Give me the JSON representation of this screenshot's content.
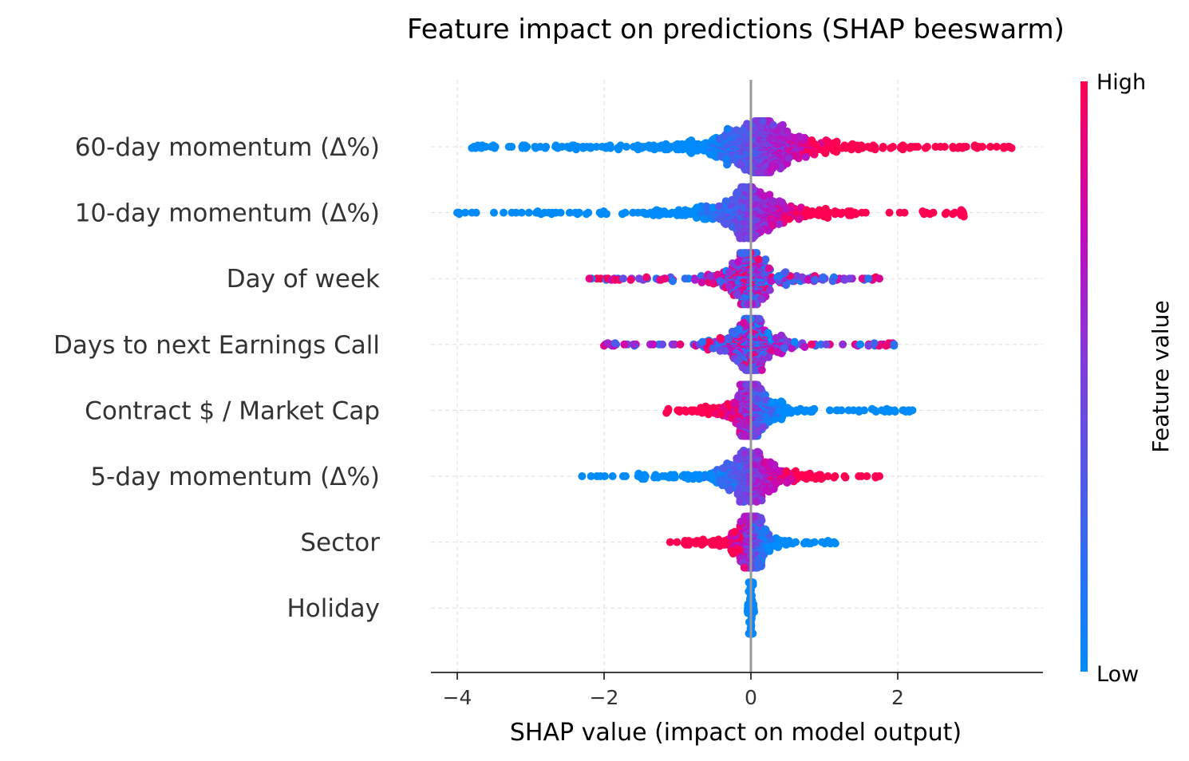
{
  "chart_data": {
    "type": "scatter",
    "subtype": "shap-beeswarm",
    "title": "Feature impact on predictions (SHAP beeswarm)",
    "xlabel": "SHAP value (impact on model output)",
    "ylabel": "",
    "xlim": [
      -4.35,
      3.95
    ],
    "xticks": [
      -4,
      -2,
      0,
      2
    ],
    "xtick_labels": [
      "−4",
      "−2",
      "0",
      "2"
    ],
    "grid": true,
    "colorbar": {
      "label": "Feature value",
      "high_label": "High",
      "low_label": "Low",
      "low_color": "#008bfb",
      "high_color": "#ff0052"
    },
    "features": [
      {
        "name": "60-day momentum (Δ%)",
        "min": -3.8,
        "max": 3.55,
        "spread": 1.0,
        "n": 900,
        "trend": 1,
        "peak": 0.15,
        "extremes": [
          -3.8,
          -3.75,
          -3.72,
          3.52,
          3.55,
          3.05,
          2.88,
          2.82
        ]
      },
      {
        "name": "10-day momentum (Δ%)",
        "min": -4.0,
        "max": 2.9,
        "spread": 0.9,
        "n": 650,
        "trend": 1,
        "peak": 0.0,
        "extremes": [
          -4.0,
          -3.8,
          -3.5,
          -3.2,
          2.9,
          2.75,
          2.65
        ]
      },
      {
        "name": "Day of week",
        "min": -2.2,
        "max": 1.75,
        "spread": 0.5,
        "n": 500,
        "trend": 0,
        "peak": 0.0,
        "extremes": [
          -2.2,
          -1.95,
          -1.9,
          -1.85,
          1.6,
          1.75
        ]
      },
      {
        "name": "Days to next Earnings Call",
        "min": -2.0,
        "max": 1.95,
        "spread": 0.5,
        "n": 500,
        "trend": 0,
        "peak": 0.0,
        "extremes": [
          -2.0,
          -1.95,
          -1.85,
          1.68,
          1.95
        ]
      },
      {
        "name": "Contract $ / Market Cap",
        "min": -1.15,
        "max": 2.2,
        "spread": 0.45,
        "n": 500,
        "trend": -1,
        "peak": 0.0,
        "extremes": [
          -1.15,
          1.65,
          1.85,
          2.2
        ]
      },
      {
        "name": "5-day momentum (Δ%)",
        "min": -2.3,
        "max": 1.75,
        "spread": 0.7,
        "n": 500,
        "trend": 1,
        "peak": 0.0,
        "extremes": [
          -2.3,
          -2.05,
          1.7,
          1.75
        ]
      },
      {
        "name": "Sector",
        "min": -1.1,
        "max": 1.15,
        "spread": 0.35,
        "n": 400,
        "trend": -1,
        "peak": 0.0,
        "extremes": [
          -1.1,
          1.05,
          1.15
        ]
      },
      {
        "name": "Holiday",
        "min": -0.05,
        "max": 0.05,
        "spread": 0.02,
        "n": 160,
        "trend": 0,
        "peak": 0.0,
        "extremes": []
      }
    ]
  }
}
